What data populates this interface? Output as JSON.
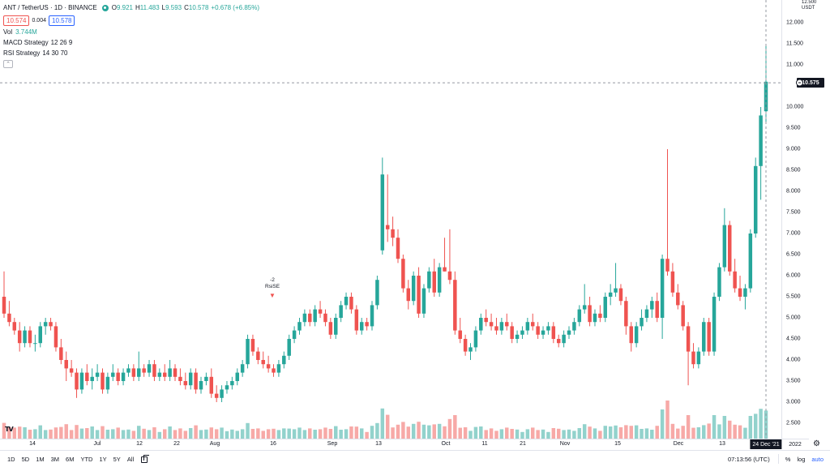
{
  "legend": {
    "symbol": "ANT / TetherUS · 1D · BINANCE",
    "open": "9.921",
    "high": "11.483",
    "low": "9.593",
    "close": "10.578",
    "change": "+0.678 (+6.85%)",
    "sell_price": "10.574",
    "spread": "0.004",
    "buy_price": "10.578",
    "vol_label": "Vol",
    "vol_value": "3.744M",
    "studies": [
      {
        "name": "MACD Strategy",
        "params": "12 26 9"
      },
      {
        "name": "RSI Strategy",
        "params": "14 30 70"
      }
    ]
  },
  "price_axis": {
    "currency": "USDT",
    "top_label": "12.500",
    "ticks": [
      "12.000",
      "11.500",
      "11.000",
      "10.000",
      "9.500",
      "9.000",
      "8.500",
      "8.000",
      "7.500",
      "7.000",
      "6.500",
      "6.000",
      "5.500",
      "5.000",
      "4.500",
      "4.000",
      "3.500",
      "3.000",
      "2.500"
    ],
    "last_price": "10.575"
  },
  "time_axis": {
    "ticks": [
      "14",
      "Jul",
      "12",
      "22",
      "Aug",
      "16",
      "Sep",
      "13",
      "Oct",
      "11",
      "21",
      "Nov",
      "15",
      "Dec",
      "13"
    ],
    "cursor": "24 Dec '21",
    "year": "2022"
  },
  "marker": {
    "value": "-2",
    "label": "RsiSE"
  },
  "bottom_bar": {
    "ranges": [
      "1D",
      "5D",
      "1M",
      "3M",
      "6M",
      "YTD",
      "1Y",
      "5Y",
      "All"
    ],
    "clock": "07:13:56 (UTC)",
    "percent": "%",
    "log": "log",
    "auto": "auto"
  },
  "colors": {
    "up": "#26a69a",
    "down": "#ef5350",
    "vol_up": "#92d2cc",
    "vol_down": "#f7a9a7",
    "text": "#131722"
  },
  "chart_data": {
    "type": "candlestick",
    "symbol": "ANTUSDT",
    "interval": "1D",
    "ylim": [
      2.3,
      12.5
    ],
    "y_scale": "linear",
    "grid": false,
    "start_date": "2021-06-05",
    "ohlc": [
      [
        5.5,
        6.1,
        5.0,
        5.1
      ],
      [
        5.1,
        5.4,
        4.8,
        4.9
      ],
      [
        4.9,
        5.0,
        4.6,
        4.7
      ],
      [
        4.7,
        4.9,
        4.2,
        4.4
      ],
      [
        4.4,
        4.8,
        4.3,
        4.7
      ],
      [
        4.7,
        4.8,
        4.3,
        4.4
      ],
      [
        4.4,
        4.6,
        4.2,
        4.4
      ],
      [
        4.4,
        4.9,
        4.3,
        4.8
      ],
      [
        4.8,
        5.0,
        4.6,
        4.9
      ],
      [
        4.9,
        5.0,
        4.7,
        4.8
      ],
      [
        4.8,
        4.9,
        4.2,
        4.3
      ],
      [
        4.3,
        4.5,
        3.9,
        4.0
      ],
      [
        4.0,
        4.2,
        3.5,
        3.8
      ],
      [
        3.8,
        4.0,
        3.6,
        3.7
      ],
      [
        3.7,
        3.8,
        3.1,
        3.3
      ],
      [
        3.3,
        3.8,
        3.2,
        3.7
      ],
      [
        3.7,
        3.9,
        3.4,
        3.5
      ],
      [
        3.5,
        3.8,
        3.3,
        3.6
      ],
      [
        3.6,
        3.9,
        3.5,
        3.7
      ],
      [
        3.7,
        3.8,
        3.2,
        3.3
      ],
      [
        3.3,
        3.7,
        3.2,
        3.6
      ],
      [
        3.6,
        3.9,
        3.5,
        3.7
      ],
      [
        3.7,
        3.8,
        3.4,
        3.5
      ],
      [
        3.5,
        3.8,
        3.4,
        3.7
      ],
      [
        3.7,
        3.9,
        3.6,
        3.8
      ],
      [
        3.8,
        3.9,
        3.5,
        3.6
      ],
      [
        3.6,
        4.2,
        3.5,
        3.8
      ],
      [
        3.8,
        3.9,
        3.6,
        3.7
      ],
      [
        3.7,
        4.0,
        3.6,
        3.9
      ],
      [
        3.9,
        4.0,
        3.5,
        3.6
      ],
      [
        3.6,
        3.8,
        3.5,
        3.7
      ],
      [
        3.7,
        3.9,
        3.5,
        3.6
      ],
      [
        3.6,
        4.0,
        3.5,
        3.8
      ],
      [
        3.8,
        3.9,
        3.5,
        3.6
      ],
      [
        3.6,
        3.8,
        3.4,
        3.5
      ],
      [
        3.5,
        3.7,
        3.3,
        3.4
      ],
      [
        3.4,
        3.8,
        3.3,
        3.7
      ],
      [
        3.7,
        3.8,
        3.2,
        3.3
      ],
      [
        3.3,
        3.6,
        3.2,
        3.5
      ],
      [
        3.5,
        3.7,
        3.4,
        3.6
      ],
      [
        3.6,
        3.8,
        3.1,
        3.2
      ],
      [
        3.2,
        3.4,
        3.0,
        3.1
      ],
      [
        3.1,
        3.4,
        3.0,
        3.3
      ],
      [
        3.3,
        3.5,
        3.2,
        3.4
      ],
      [
        3.4,
        3.6,
        3.3,
        3.5
      ],
      [
        3.5,
        3.8,
        3.4,
        3.7
      ],
      [
        3.7,
        4.0,
        3.6,
        3.9
      ],
      [
        3.9,
        4.6,
        3.8,
        4.5
      ],
      [
        4.5,
        4.6,
        4.1,
        4.2
      ],
      [
        4.2,
        4.3,
        3.9,
        4.0
      ],
      [
        4.0,
        4.2,
        3.8,
        3.9
      ],
      [
        3.9,
        4.1,
        3.7,
        3.8
      ],
      [
        3.8,
        3.9,
        3.6,
        3.7
      ],
      [
        3.7,
        4.0,
        3.6,
        3.9
      ],
      [
        3.9,
        4.2,
        3.8,
        4.1
      ],
      [
        4.1,
        4.6,
        4.0,
        4.5
      ],
      [
        4.5,
        4.8,
        4.4,
        4.7
      ],
      [
        4.7,
        5.0,
        4.6,
        4.9
      ],
      [
        4.9,
        5.2,
        4.8,
        5.1
      ],
      [
        5.1,
        5.2,
        4.8,
        4.9
      ],
      [
        4.9,
        5.3,
        4.8,
        5.2
      ],
      [
        5.2,
        5.4,
        5.0,
        5.1
      ],
      [
        5.1,
        5.2,
        4.8,
        4.9
      ],
      [
        4.9,
        5.0,
        4.5,
        4.6
      ],
      [
        4.6,
        5.1,
        4.5,
        5.0
      ],
      [
        5.0,
        5.4,
        4.9,
        5.3
      ],
      [
        5.3,
        5.6,
        5.2,
        5.5
      ],
      [
        5.5,
        5.6,
        5.1,
        5.2
      ],
      [
        5.2,
        5.3,
        4.6,
        4.7
      ],
      [
        4.7,
        5.0,
        4.6,
        4.9
      ],
      [
        4.9,
        5.0,
        4.7,
        4.8
      ],
      [
        4.8,
        5.4,
        4.7,
        5.3
      ],
      [
        5.3,
        6.0,
        5.2,
        5.9
      ],
      [
        6.6,
        8.8,
        6.5,
        8.4
      ],
      [
        7.2,
        8.4,
        6.8,
        7.1
      ],
      [
        7.1,
        7.4,
        6.7,
        6.9
      ],
      [
        6.9,
        7.1,
        6.3,
        6.4
      ],
      [
        6.4,
        6.5,
        5.6,
        5.7
      ],
      [
        5.7,
        5.9,
        5.2,
        5.4
      ],
      [
        5.4,
        6.1,
        5.3,
        6.0
      ],
      [
        6.0,
        6.2,
        5.0,
        5.1
      ],
      [
        5.1,
        5.8,
        5.0,
        5.7
      ],
      [
        5.7,
        6.2,
        5.6,
        6.1
      ],
      [
        6.1,
        6.4,
        5.5,
        5.6
      ],
      [
        5.6,
        6.3,
        5.5,
        6.2
      ],
      [
        6.2,
        6.9,
        6.1,
        6.1
      ],
      [
        6.1,
        7.1,
        5.8,
        5.9
      ],
      [
        5.9,
        6.1,
        4.6,
        4.7
      ],
      [
        4.7,
        5.0,
        4.4,
        4.5
      ],
      [
        4.5,
        4.6,
        4.1,
        4.2
      ],
      [
        4.2,
        4.4,
        4.0,
        4.3
      ],
      [
        4.3,
        4.8,
        4.2,
        4.7
      ],
      [
        4.7,
        5.1,
        4.6,
        5.0
      ],
      [
        5.0,
        5.2,
        4.8,
        4.9
      ],
      [
        4.9,
        5.1,
        4.7,
        4.8
      ],
      [
        4.8,
        5.0,
        4.6,
        4.7
      ],
      [
        4.7,
        5.0,
        4.6,
        4.9
      ],
      [
        4.9,
        5.1,
        4.7,
        4.8
      ],
      [
        4.8,
        4.9,
        4.4,
        4.5
      ],
      [
        4.5,
        4.7,
        4.4,
        4.6
      ],
      [
        4.6,
        4.8,
        4.5,
        4.7
      ],
      [
        4.7,
        5.0,
        4.6,
        4.9
      ],
      [
        4.9,
        5.1,
        4.7,
        4.8
      ],
      [
        4.8,
        4.9,
        4.5,
        4.6
      ],
      [
        4.6,
        4.8,
        4.5,
        4.7
      ],
      [
        4.7,
        4.9,
        4.6,
        4.8
      ],
      [
        4.8,
        4.9,
        4.4,
        4.5
      ],
      [
        4.5,
        4.6,
        4.3,
        4.4
      ],
      [
        4.4,
        4.7,
        4.3,
        4.6
      ],
      [
        4.6,
        4.8,
        4.5,
        4.7
      ],
      [
        4.7,
        5.0,
        4.6,
        4.9
      ],
      [
        4.9,
        5.3,
        4.8,
        5.2
      ],
      [
        5.2,
        5.8,
        5.1,
        5.3
      ],
      [
        5.3,
        5.5,
        4.8,
        4.9
      ],
      [
        4.9,
        5.2,
        4.8,
        5.1
      ],
      [
        5.1,
        5.3,
        4.9,
        5.0
      ],
      [
        5.0,
        5.6,
        4.9,
        5.5
      ],
      [
        5.5,
        5.8,
        5.3,
        5.6
      ],
      [
        5.6,
        6.3,
        5.5,
        5.7
      ],
      [
        5.7,
        5.8,
        5.3,
        5.4
      ],
      [
        5.4,
        5.5,
        4.6,
        4.8
      ],
      [
        4.8,
        4.9,
        4.2,
        4.4
      ],
      [
        4.4,
        4.9,
        4.3,
        4.8
      ],
      [
        4.8,
        5.2,
        4.7,
        5.0
      ],
      [
        5.0,
        5.3,
        4.9,
        5.2
      ],
      [
        5.2,
        5.5,
        5.0,
        5.4
      ],
      [
        5.4,
        5.6,
        4.9,
        5.0
      ],
      [
        5.0,
        6.5,
        4.5,
        6.4
      ],
      [
        6.4,
        9.0,
        6.0,
        6.1
      ],
      [
        6.1,
        6.3,
        5.5,
        5.6
      ],
      [
        5.6,
        5.8,
        5.2,
        5.3
      ],
      [
        5.3,
        5.4,
        4.7,
        4.8
      ],
      [
        4.8,
        4.9,
        3.4,
        4.2
      ],
      [
        4.2,
        4.4,
        3.8,
        3.9
      ],
      [
        3.9,
        4.3,
        3.8,
        4.2
      ],
      [
        4.2,
        5.0,
        4.1,
        4.9
      ],
      [
        4.9,
        5.0,
        4.1,
        4.2
      ],
      [
        4.2,
        5.6,
        4.1,
        5.5
      ],
      [
        5.5,
        6.3,
        5.4,
        6.2
      ],
      [
        6.2,
        7.6,
        6.1,
        7.2
      ],
      [
        7.2,
        7.3,
        6.0,
        6.1
      ],
      [
        6.1,
        6.4,
        5.6,
        5.7
      ],
      [
        5.7,
        6.0,
        5.4,
        5.5
      ],
      [
        5.5,
        5.8,
        5.2,
        5.7
      ],
      [
        5.7,
        7.1,
        5.6,
        7.0
      ],
      [
        7.0,
        8.8,
        6.9,
        8.6
      ],
      [
        8.6,
        10.0,
        7.8,
        9.8
      ],
      [
        9.9,
        11.5,
        9.6,
        10.6
      ]
    ],
    "volume_up_down": "color by candle direction"
  }
}
